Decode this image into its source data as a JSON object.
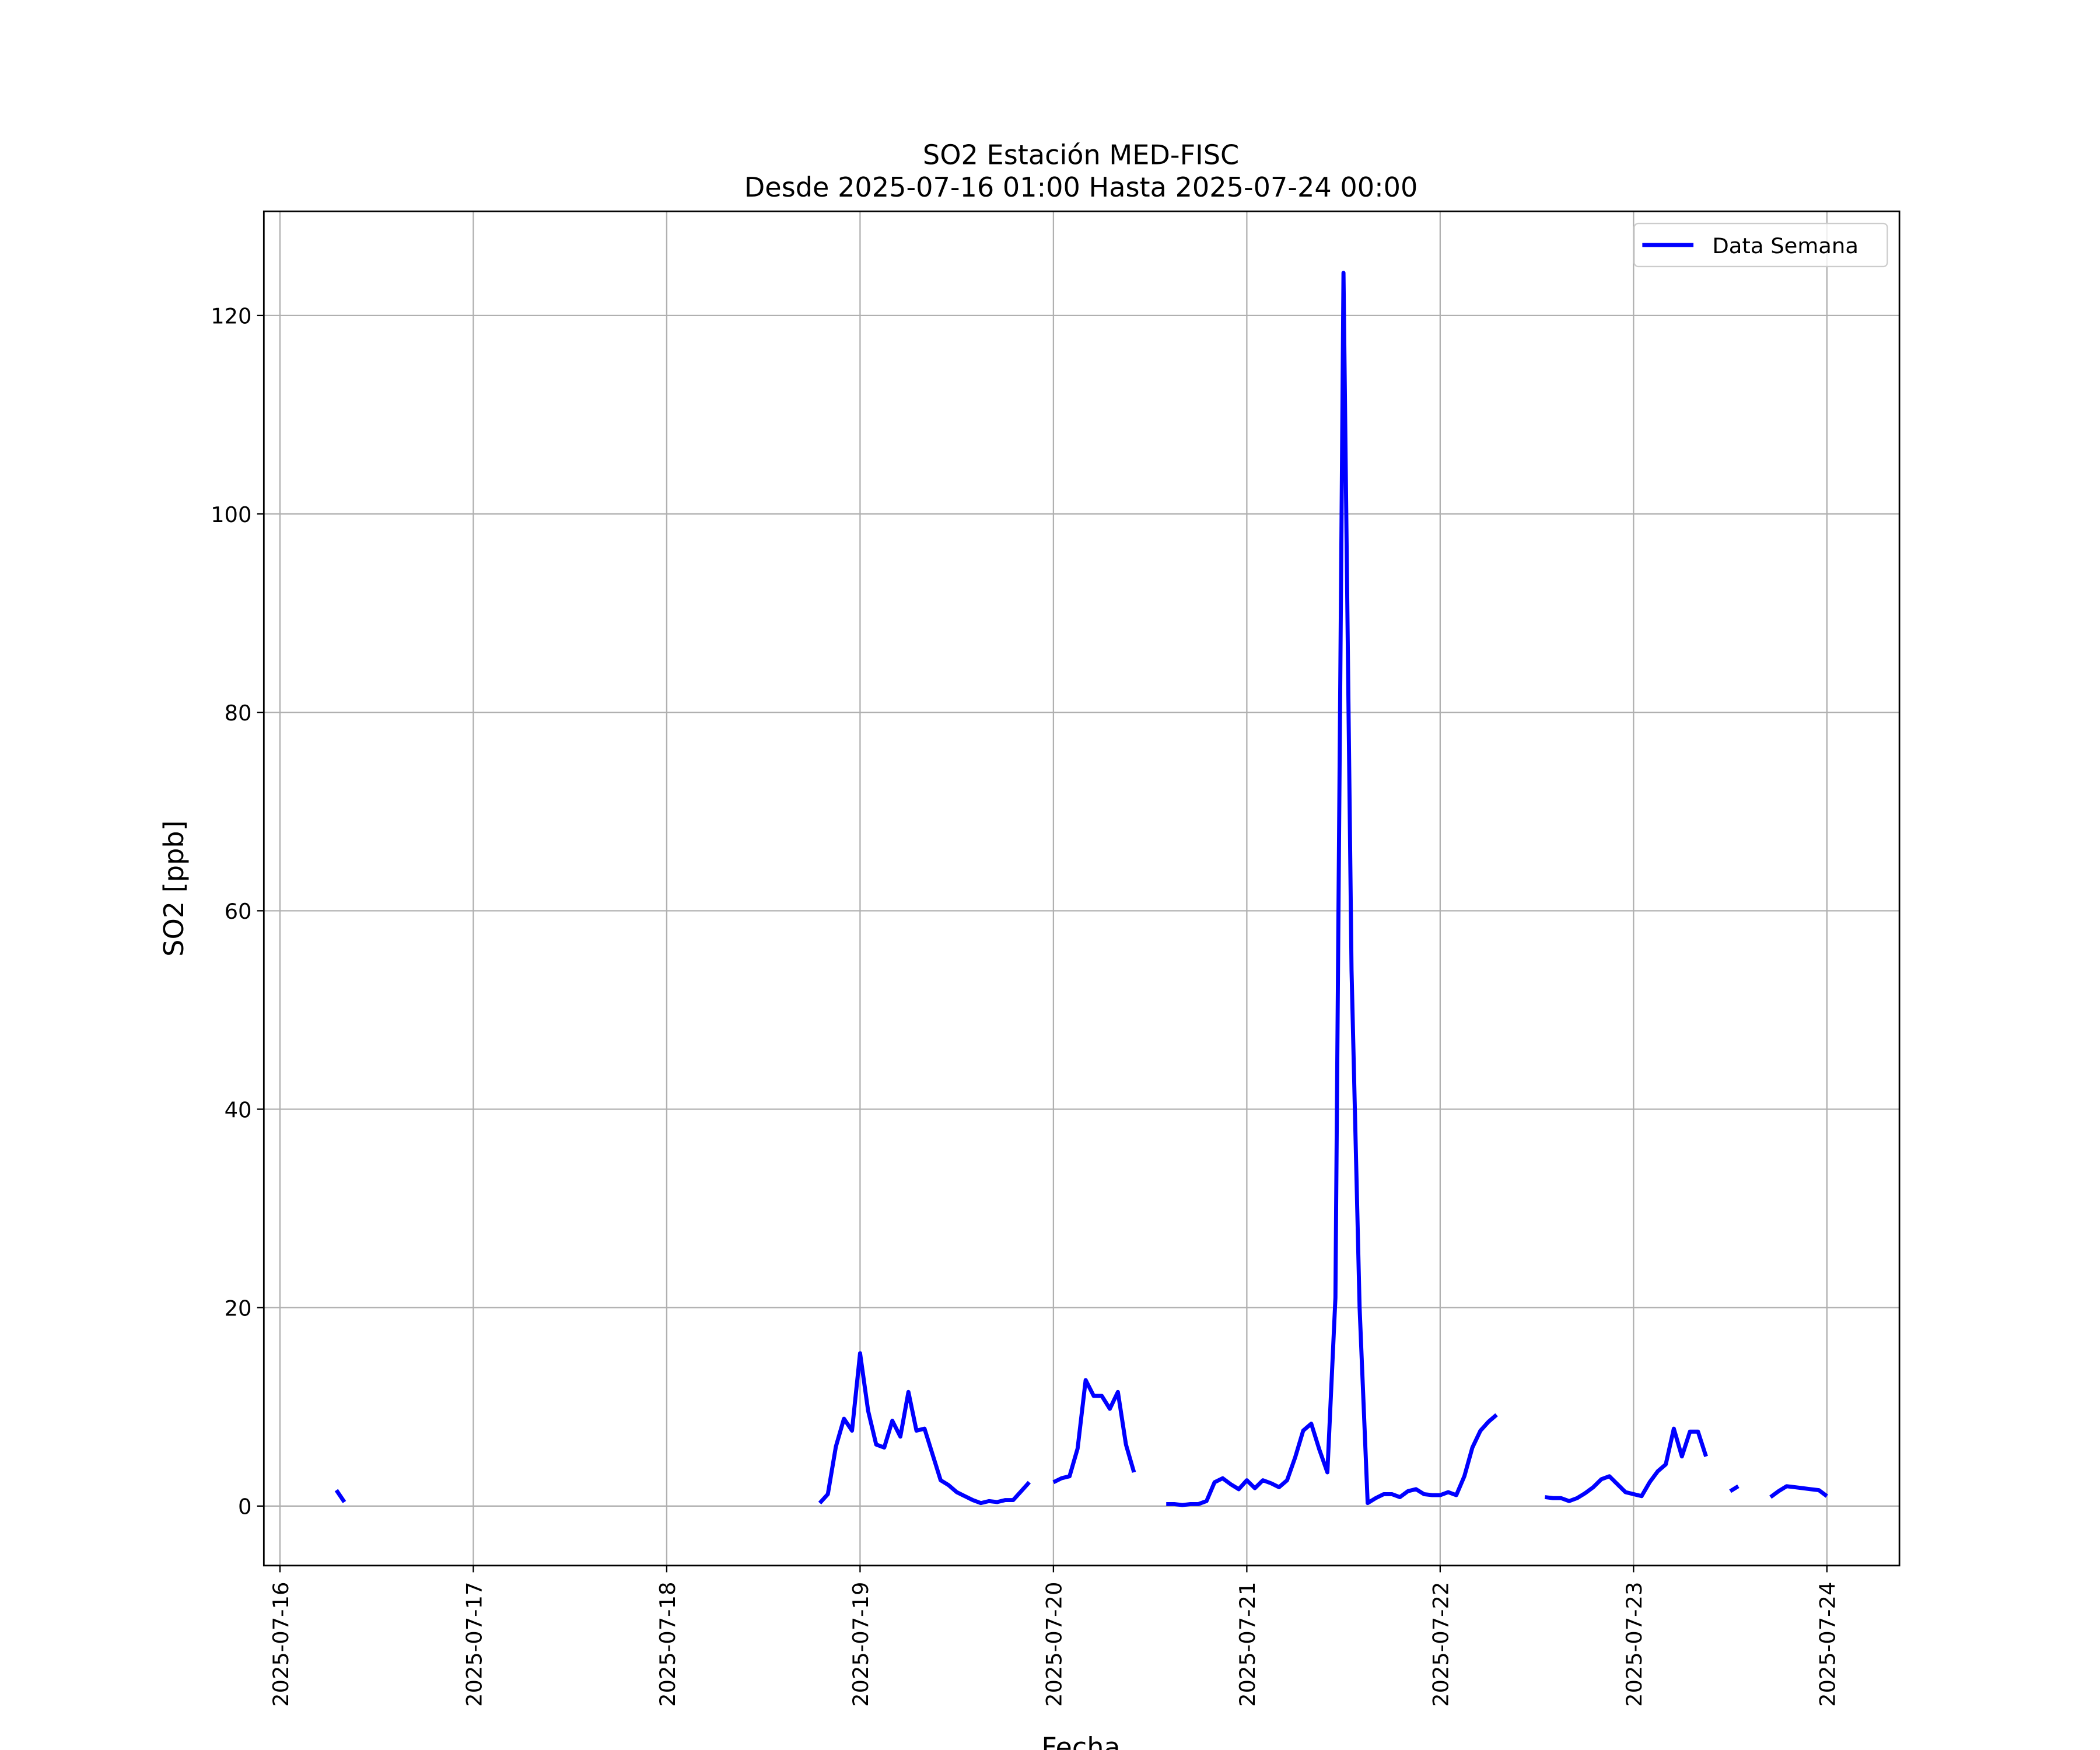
{
  "chart_data": {
    "type": "line",
    "title": "SO2 Estación MED-FISC",
    "subtitle": "Desde 2025-07-16 01:00 Hasta 2025-07-24 00:00",
    "xlabel": "Fecha",
    "ylabel": "SO2 [ppb]",
    "xlim": [
      "2025-07-15 22:00",
      "2025-07-24 09:00"
    ],
    "ylim": [
      -6,
      130.5
    ],
    "xticks": [
      "2025-07-16",
      "2025-07-17",
      "2025-07-18",
      "2025-07-19",
      "2025-07-20",
      "2025-07-21",
      "2025-07-22",
      "2025-07-23",
      "2025-07-24"
    ],
    "yticks": [
      0,
      20,
      40,
      60,
      80,
      100,
      120
    ],
    "grid": true,
    "legend": "upper right",
    "series": [
      {
        "name": "Data Semana",
        "color": "#0000ff",
        "x": [
          "2025-07-16 07:00",
          "2025-07-16 08:00",
          "2025-07-16 09:00",
          "2025-07-18 19:00",
          "2025-07-18 20:00",
          "2025-07-18 21:00",
          "2025-07-18 22:00",
          "2025-07-18 23:00",
          "2025-07-19 00:00",
          "2025-07-19 01:00",
          "2025-07-19 02:00",
          "2025-07-19 03:00",
          "2025-07-19 04:00",
          "2025-07-19 05:00",
          "2025-07-19 06:00",
          "2025-07-19 07:00",
          "2025-07-19 08:00",
          "2025-07-19 09:00",
          "2025-07-19 10:00",
          "2025-07-19 11:00",
          "2025-07-19 12:00",
          "2025-07-19 13:00",
          "2025-07-19 14:00",
          "2025-07-19 15:00",
          "2025-07-19 16:00",
          "2025-07-19 17:00",
          "2025-07-19 18:00",
          "2025-07-19 19:00",
          "2025-07-19 20:00",
          "2025-07-19 21:00",
          "2025-07-19 22:00",
          "2025-07-20 00:00",
          "2025-07-20 01:00",
          "2025-07-20 02:00",
          "2025-07-20 03:00",
          "2025-07-20 04:00",
          "2025-07-20 05:00",
          "2025-07-20 06:00",
          "2025-07-20 07:00",
          "2025-07-20 08:00",
          "2025-07-20 09:00",
          "2025-07-20 10:00",
          "2025-07-20 11:00",
          "2025-07-20 14:00",
          "2025-07-20 15:00",
          "2025-07-20 16:00",
          "2025-07-20 17:00",
          "2025-07-20 18:00",
          "2025-07-20 19:00",
          "2025-07-20 20:00",
          "2025-07-20 21:00",
          "2025-07-20 22:00",
          "2025-07-20 23:00",
          "2025-07-21 00:00",
          "2025-07-21 01:00",
          "2025-07-21 02:00",
          "2025-07-21 03:00",
          "2025-07-21 04:00",
          "2025-07-21 05:00",
          "2025-07-21 06:00",
          "2025-07-21 07:00",
          "2025-07-21 08:00",
          "2025-07-21 09:00",
          "2025-07-21 10:00",
          "2025-07-21 11:00",
          "2025-07-21 12:00",
          "2025-07-21 13:00",
          "2025-07-21 14:00",
          "2025-07-21 15:00",
          "2025-07-21 16:00",
          "2025-07-21 17:00",
          "2025-07-21 18:00",
          "2025-07-21 19:00",
          "2025-07-21 20:00",
          "2025-07-21 21:00",
          "2025-07-21 22:00",
          "2025-07-21 23:00",
          "2025-07-22 00:00",
          "2025-07-22 01:00",
          "2025-07-22 02:00",
          "2025-07-22 03:00",
          "2025-07-22 04:00",
          "2025-07-22 05:00",
          "2025-07-22 06:00",
          "2025-07-22 07:00",
          "2025-07-22 08:00",
          "2025-07-22 13:00",
          "2025-07-22 14:00",
          "2025-07-22 15:00",
          "2025-07-22 16:00",
          "2025-07-22 17:00",
          "2025-07-22 18:00",
          "2025-07-22 19:00",
          "2025-07-22 20:00",
          "2025-07-22 21:00",
          "2025-07-22 22:00",
          "2025-07-22 23:00",
          "2025-07-23 00:00",
          "2025-07-23 01:00",
          "2025-07-23 02:00",
          "2025-07-23 03:00",
          "2025-07-23 04:00",
          "2025-07-23 05:00",
          "2025-07-23 06:00",
          "2025-07-23 07:00",
          "2025-07-23 08:00",
          "2025-07-23 09:00",
          "2025-07-23 10:00",
          "2025-07-23 12:00",
          "2025-07-23 13:00",
          "2025-07-23 14:00",
          "2025-07-23 17:00",
          "2025-07-23 18:00",
          "2025-07-23 19:00",
          "2025-07-23 20:00",
          "2025-07-23 21:00",
          "2025-07-23 22:00",
          "2025-07-23 23:00",
          "2025-07-24 00:00"
        ],
        "values": [
          1.6,
          0.4,
          null,
          0.3,
          1.2,
          6,
          8.8,
          7.6,
          15.4,
          9.6,
          6.2,
          5.9,
          8.6,
          7.0,
          11.5,
          7.6,
          7.8,
          5.2,
          2.6,
          2.1,
          1.4,
          1.0,
          0.6,
          0.3,
          0.5,
          0.4,
          0.6,
          0.6,
          1.5,
          2.4,
          null,
          2.4,
          2.8,
          3.0,
          5.8,
          12.7,
          11.1,
          11.1,
          9.8,
          11.5,
          6.2,
          3.4,
          null,
          0.2,
          0.2,
          0.1,
          0.2,
          0.2,
          0.5,
          2.4,
          2.8,
          2.2,
          1.7,
          2.6,
          1.8,
          2.6,
          2.3,
          1.9,
          2.6,
          4.9,
          7.6,
          8.3,
          5.7,
          3.4,
          21,
          124.3,
          54,
          20,
          0.3,
          0.8,
          1.2,
          1.2,
          0.9,
          1.5,
          1.7,
          1.2,
          1.1,
          1.1,
          1.4,
          1.1,
          3.0,
          5.9,
          7.6,
          8.5,
          9.2,
          null,
          0.9,
          0.8,
          0.8,
          0.5,
          0.8,
          1.3,
          1.9,
          2.7,
          3.0,
          2.2,
          1.4,
          1.2,
          1.0,
          2.4,
          3.5,
          4.2,
          7.8,
          5.0,
          7.5,
          7.5,
          5.0,
          null,
          1.5,
          2.0,
          null,
          0.9,
          1.5,
          2.0,
          1.9,
          1.8,
          1.7,
          1.6,
          1.0
        ]
      }
    ]
  }
}
